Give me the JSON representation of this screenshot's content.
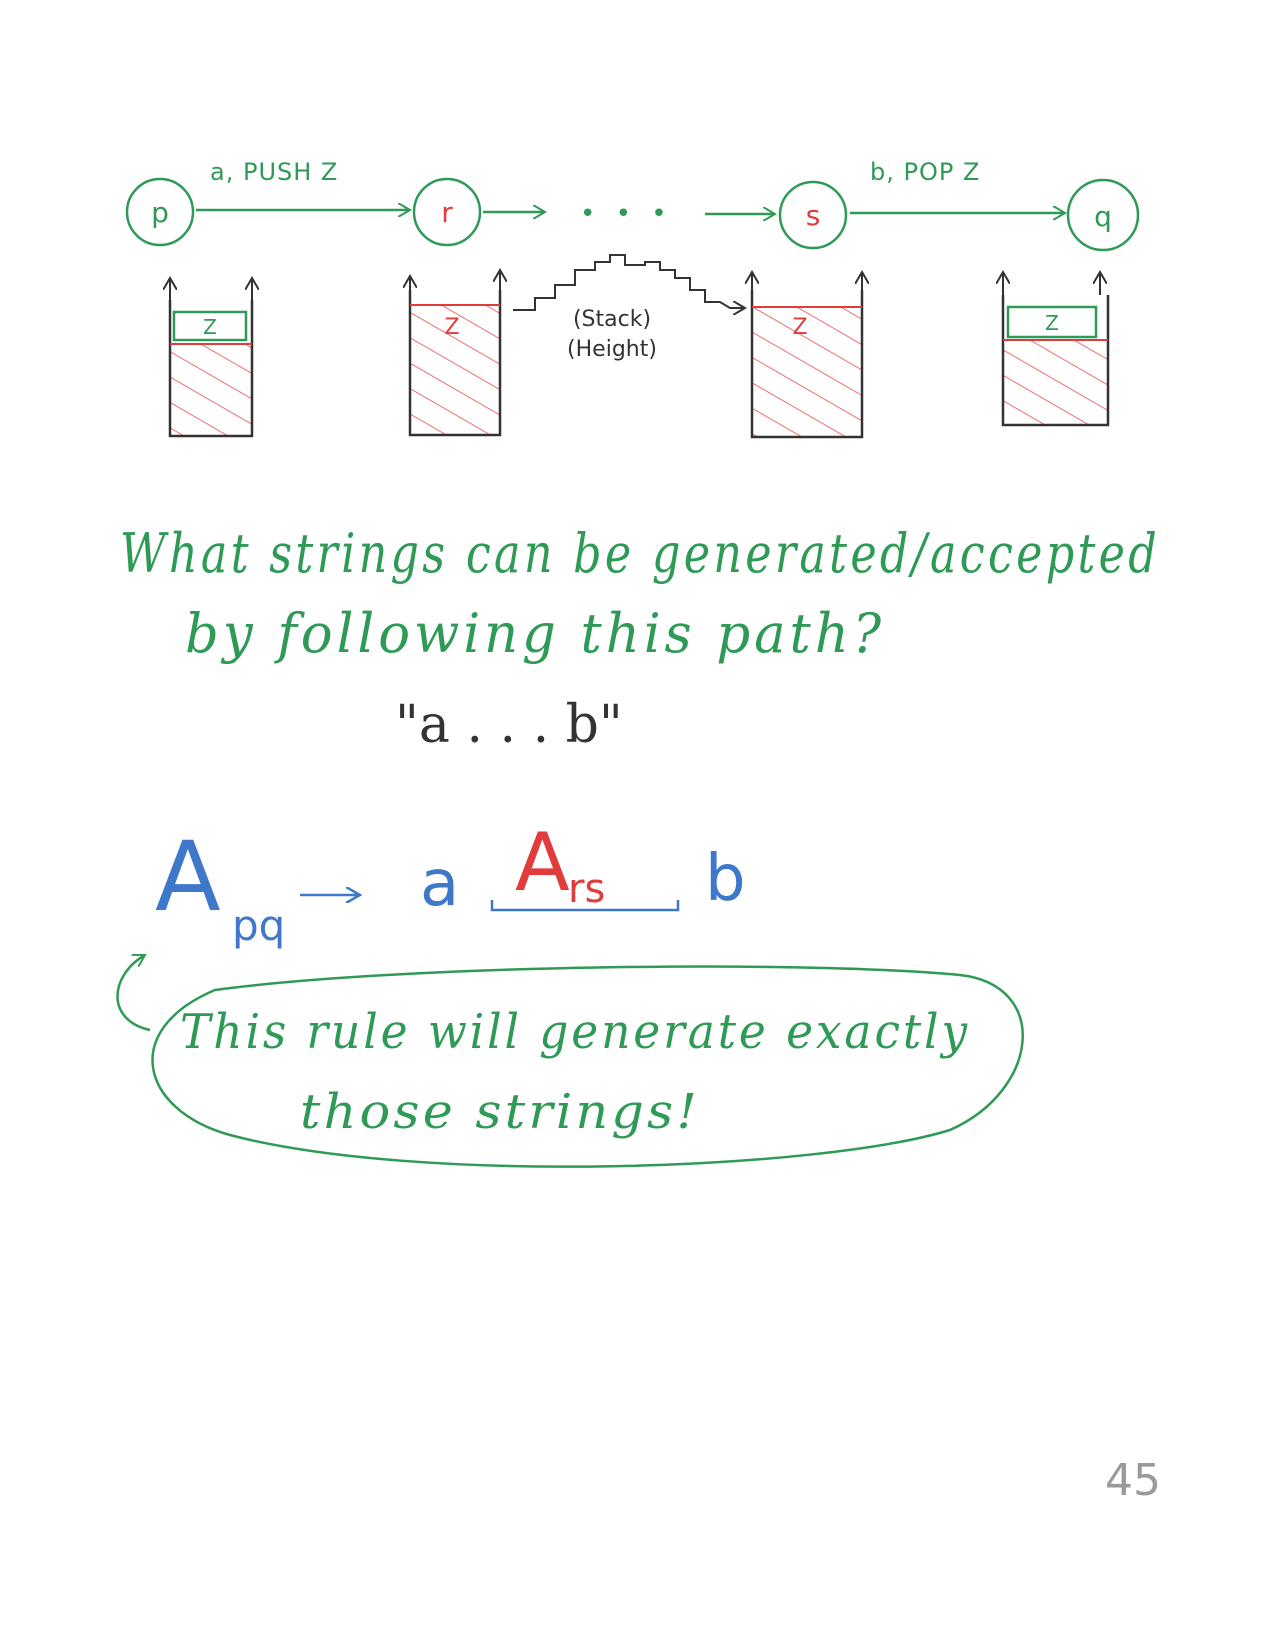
{
  "colors": {
    "green": "#2e9a56",
    "red": "#e23b3b",
    "blue": "#3f78c8",
    "ink": "#333333",
    "hatch": "#f07070",
    "gray": "#9a9a9a"
  },
  "diagram": {
    "states": {
      "p": "p",
      "r": "r",
      "s": "s",
      "q": "q"
    },
    "ellipsis": "• • •",
    "push_label": "a, PUSH Z",
    "pop_label": "b, POP Z",
    "stack_symbol": "Z",
    "stack_height_label": [
      "(Stack)",
      "(Height)"
    ]
  },
  "question": {
    "line1": "What strings can be generated/accepted",
    "line2": "by following this path?",
    "example": "\"a . . . b\""
  },
  "rule": {
    "lhs_main": "A",
    "lhs_sub": "pq",
    "arrow": "→",
    "terminal_a": "a",
    "rhs_main": "A",
    "rhs_sub": "rs",
    "terminal_b": "b"
  },
  "bubble": {
    "line1": "This rule will generate exactly",
    "line2": "those strings!"
  },
  "page_number": "45"
}
